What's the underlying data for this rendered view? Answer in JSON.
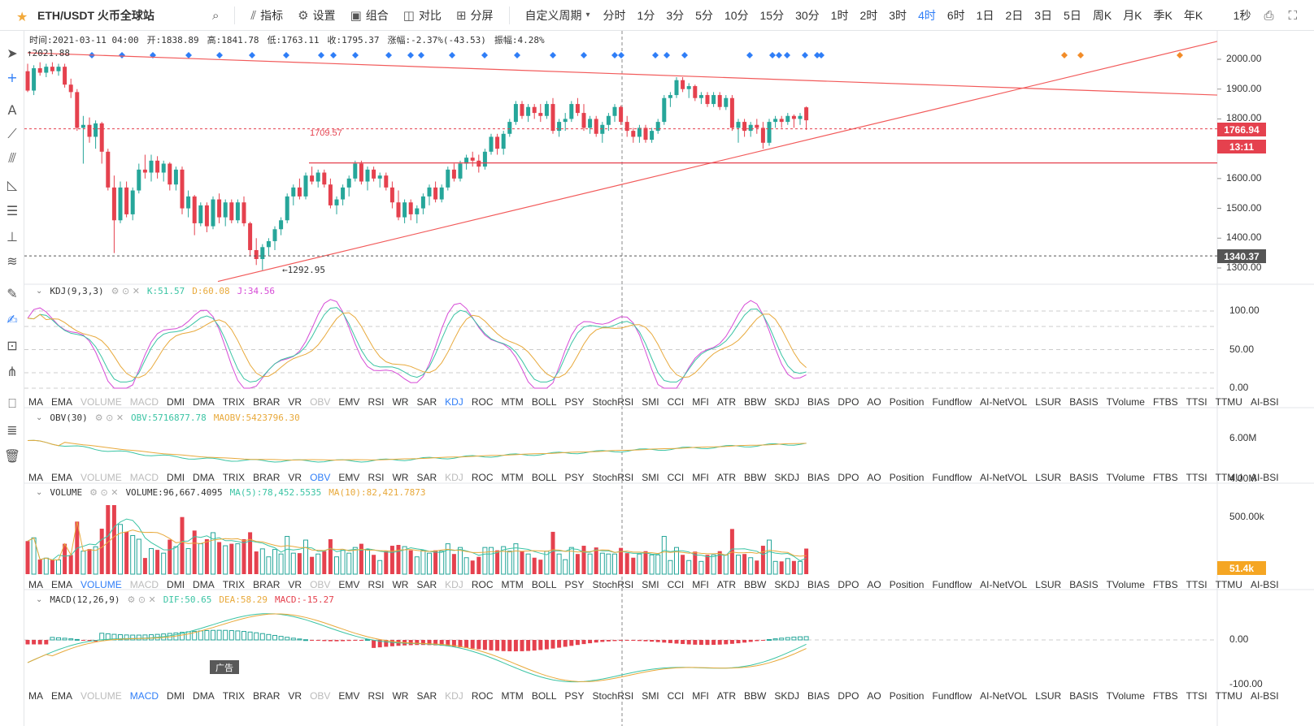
{
  "topbar": {
    "symbol": "ETH/USDT 火币全球站",
    "buttons": [
      {
        "id": "search",
        "icon": "search-icon",
        "label": ""
      },
      {
        "id": "indicators",
        "icon": "chart-line-icon",
        "label": "指标"
      },
      {
        "id": "settings",
        "icon": "gear-icon",
        "label": "设置"
      },
      {
        "id": "combine",
        "icon": "layers-icon",
        "label": "组合"
      },
      {
        "id": "compare",
        "icon": "compare-icon",
        "label": "对比"
      },
      {
        "id": "split",
        "icon": "split-screen-icon",
        "label": "分屏"
      }
    ],
    "custom_period": "自定义周期",
    "periods": [
      "分时",
      "1分",
      "3分",
      "5分",
      "10分",
      "15分",
      "30分",
      "1时",
      "2时",
      "3时",
      "4时",
      "6时",
      "1日",
      "2日",
      "3日",
      "5日",
      "周K",
      "月K",
      "季K",
      "年K"
    ],
    "active_period": "4时",
    "refresh": "1秒",
    "colors": {
      "active": "#2f7ef7",
      "star": "#f2a93b"
    }
  },
  "info": {
    "time": "时间:2021-03-11 04:00",
    "open": "开:1838.89",
    "high": "高:1841.78",
    "low": "低:1763.11",
    "close": "收:1795.37",
    "change": "涨幅:-2.37%(-43.53)",
    "amplitude": "振幅:4.28%"
  },
  "price_axis": {
    "ticks": [
      "2000.00",
      "1900.00",
      "1800.00",
      "1700.00",
      "1600.00",
      "1500.00",
      "1400.00",
      "1300.00"
    ],
    "tags": {
      "current": "1766.94",
      "countdown": "13:11",
      "lower": "1340.37",
      "volume": "51.4k"
    }
  },
  "annotations": {
    "high": "2021.88",
    "low": "1292.95",
    "level": "1709.57"
  },
  "panes": {
    "kdj": {
      "name": "KDJ(9,3,3)",
      "k": "K:51.57",
      "d": "D:60.08",
      "j": "J:34.56",
      "ticks": [
        "100.00",
        "50.00",
        "0.00"
      ]
    },
    "obv": {
      "name": "OBV(30)",
      "obv": "OBV:5716877.78",
      "maobv": "MAOBV:5423796.30",
      "ticks": [
        "6.00M",
        "4.00M"
      ]
    },
    "volume": {
      "name": "VOLUME",
      "vol": "VOLUME:96,667.4095",
      "ma5": "MA(5):78,452.5535",
      "ma10": "MA(10):82,421.7873",
      "ticks": [
        "500.00k"
      ]
    },
    "macd": {
      "name": "MACD(12,26,9)",
      "dif": "DIF:50.65",
      "dea": "DEA:58.29",
      "macd": "MACD:-15.27",
      "ticks": [
        "0.00",
        "-100.00"
      ]
    }
  },
  "indicator_tabs": [
    "MA",
    "EMA",
    "VOLUME",
    "MACD",
    "DMI",
    "DMA",
    "TRIX",
    "BRAR",
    "VR",
    "OBV",
    "EMV",
    "RSI",
    "WR",
    "SAR",
    "KDJ",
    "ROC",
    "MTM",
    "BOLL",
    "PSY",
    "StochRSI",
    "SMI",
    "CCI",
    "MFI",
    "ATR",
    "BBW",
    "SKDJ",
    "BIAS",
    "DPO",
    "AO",
    "Position",
    "Fundflow",
    "AI-NetVOL",
    "LSUR",
    "BASIS",
    "TVolume",
    "FTBS",
    "TTSI",
    "TTMU",
    "AI-BSI"
  ],
  "ad_label": "广告",
  "chart_data": {
    "type": "candlestick",
    "title": "ETH/USDT 火币全球站",
    "interval": "4时",
    "ylim": [
      1270,
      2060
    ],
    "ohlc_note": "estimated from the chart",
    "candles": [
      [
        1960,
        1985,
        1890,
        1895
      ],
      [
        1895,
        1980,
        1880,
        1970
      ],
      [
        1970,
        1990,
        1945,
        1955
      ],
      [
        1955,
        1985,
        1940,
        1975
      ],
      [
        1975,
        1990,
        1950,
        1960
      ],
      [
        1960,
        1985,
        1945,
        1975
      ],
      [
        1975,
        1985,
        1905,
        1915
      ],
      [
        1915,
        1935,
        1870,
        1890
      ],
      [
        1890,
        1900,
        1760,
        1770
      ],
      [
        1770,
        1810,
        1650,
        1780
      ],
      [
        1780,
        1805,
        1720,
        1740
      ],
      [
        1740,
        1795,
        1700,
        1785
      ],
      [
        1785,
        1790,
        1650,
        1690
      ],
      [
        1690,
        1700,
        1560,
        1570
      ],
      [
        1570,
        1610,
        1350,
        1460
      ],
      [
        1460,
        1590,
        1450,
        1570
      ],
      [
        1570,
        1590,
        1470,
        1480
      ],
      [
        1480,
        1570,
        1460,
        1560
      ],
      [
        1560,
        1650,
        1550,
        1630
      ],
      [
        1630,
        1680,
        1600,
        1620
      ],
      [
        1620,
        1680,
        1590,
        1660
      ],
      [
        1660,
        1675,
        1600,
        1620
      ],
      [
        1620,
        1660,
        1590,
        1650
      ],
      [
        1650,
        1655,
        1560,
        1580
      ],
      [
        1580,
        1640,
        1560,
        1630
      ],
      [
        1630,
        1640,
        1480,
        1500
      ],
      [
        1500,
        1560,
        1470,
        1540
      ],
      [
        1540,
        1545,
        1410,
        1450
      ],
      [
        1450,
        1520,
        1440,
        1510
      ],
      [
        1510,
        1520,
        1420,
        1440
      ],
      [
        1440,
        1540,
        1430,
        1530
      ],
      [
        1530,
        1550,
        1450,
        1470
      ],
      [
        1470,
        1530,
        1440,
        1520
      ],
      [
        1520,
        1530,
        1450,
        1460
      ],
      [
        1460,
        1530,
        1450,
        1520
      ],
      [
        1520,
        1540,
        1440,
        1450
      ],
      [
        1450,
        1455,
        1340,
        1360
      ],
      [
        1360,
        1400,
        1310,
        1330
      ],
      [
        1330,
        1380,
        1292.95,
        1370
      ],
      [
        1370,
        1400,
        1340,
        1390
      ],
      [
        1390,
        1440,
        1360,
        1430
      ],
      [
        1430,
        1470,
        1410,
        1460
      ],
      [
        1460,
        1550,
        1450,
        1540
      ],
      [
        1540,
        1580,
        1510,
        1570
      ],
      [
        1570,
        1600,
        1530,
        1540
      ],
      [
        1540,
        1620,
        1530,
        1610
      ],
      [
        1610,
        1640,
        1580,
        1590
      ],
      [
        1590,
        1630,
        1570,
        1620
      ],
      [
        1620,
        1630,
        1570,
        1580
      ],
      [
        1580,
        1600,
        1500,
        1510
      ],
      [
        1510,
        1540,
        1480,
        1530
      ],
      [
        1530,
        1580,
        1510,
        1570
      ],
      [
        1570,
        1610,
        1540,
        1600
      ],
      [
        1600,
        1660,
        1590,
        1650
      ],
      [
        1650,
        1660,
        1580,
        1590
      ],
      [
        1590,
        1640,
        1560,
        1630
      ],
      [
        1630,
        1640,
        1590,
        1600
      ],
      [
        1600,
        1620,
        1570,
        1610
      ],
      [
        1610,
        1620,
        1560,
        1570
      ],
      [
        1570,
        1590,
        1500,
        1520
      ],
      [
        1520,
        1560,
        1460,
        1470
      ],
      [
        1470,
        1530,
        1450,
        1520
      ],
      [
        1520,
        1530,
        1460,
        1480
      ],
      [
        1480,
        1510,
        1450,
        1500
      ],
      [
        1500,
        1550,
        1480,
        1540
      ],
      [
        1540,
        1580,
        1510,
        1570
      ],
      [
        1570,
        1590,
        1520,
        1530
      ],
      [
        1530,
        1580,
        1520,
        1570
      ],
      [
        1570,
        1640,
        1560,
        1630
      ],
      [
        1630,
        1650,
        1590,
        1600
      ],
      [
        1600,
        1660,
        1590,
        1650
      ],
      [
        1650,
        1680,
        1630,
        1670
      ],
      [
        1670,
        1690,
        1640,
        1660
      ],
      [
        1660,
        1680,
        1620,
        1640
      ],
      [
        1640,
        1700,
        1630,
        1690
      ],
      [
        1690,
        1750,
        1680,
        1740
      ],
      [
        1740,
        1750,
        1680,
        1700
      ],
      [
        1700,
        1760,
        1680,
        1750
      ],
      [
        1750,
        1800,
        1740,
        1790
      ],
      [
        1790,
        1860,
        1780,
        1850
      ],
      [
        1850,
        1860,
        1800,
        1810
      ],
      [
        1810,
        1850,
        1790,
        1840
      ],
      [
        1840,
        1850,
        1800,
        1820
      ],
      [
        1820,
        1850,
        1790,
        1810
      ],
      [
        1810,
        1860,
        1800,
        1850
      ],
      [
        1850,
        1870,
        1750,
        1760
      ],
      [
        1760,
        1800,
        1740,
        1790
      ],
      [
        1790,
        1820,
        1760,
        1800
      ],
      [
        1800,
        1860,
        1790,
        1850
      ],
      [
        1850,
        1870,
        1810,
        1820
      ],
      [
        1820,
        1850,
        1760,
        1770
      ],
      [
        1770,
        1810,
        1750,
        1800
      ],
      [
        1800,
        1810,
        1740,
        1750
      ],
      [
        1750,
        1790,
        1720,
        1780
      ],
      [
        1780,
        1820,
        1760,
        1810
      ],
      [
        1810,
        1850,
        1790,
        1840
      ],
      [
        1840,
        1845,
        1780,
        1790
      ],
      [
        1790,
        1810,
        1740,
        1760
      ],
      [
        1760,
        1770,
        1720,
        1740
      ],
      [
        1740,
        1780,
        1720,
        1770
      ],
      [
        1770,
        1780,
        1720,
        1730
      ],
      [
        1730,
        1770,
        1720,
        1760
      ],
      [
        1760,
        1800,
        1750,
        1790
      ],
      [
        1790,
        1880,
        1780,
        1870
      ],
      [
        1870,
        1890,
        1840,
        1880
      ],
      [
        1880,
        1940,
        1870,
        1930
      ],
      [
        1930,
        1940,
        1890,
        1900
      ],
      [
        1900,
        1920,
        1870,
        1910
      ],
      [
        1910,
        1915,
        1860,
        1870
      ],
      [
        1870,
        1890,
        1850,
        1880
      ],
      [
        1880,
        1890,
        1840,
        1850
      ],
      [
        1850,
        1890,
        1840,
        1880
      ],
      [
        1880,
        1890,
        1830,
        1840
      ],
      [
        1840,
        1880,
        1830,
        1870
      ],
      [
        1870,
        1880,
        1760,
        1770
      ],
      [
        1770,
        1800,
        1720,
        1790
      ],
      [
        1790,
        1800,
        1740,
        1760
      ],
      [
        1760,
        1790,
        1740,
        1780
      ],
      [
        1780,
        1800,
        1750,
        1770
      ],
      [
        1770,
        1790,
        1700,
        1720
      ],
      [
        1720,
        1800,
        1710,
        1790
      ],
      [
        1790,
        1810,
        1770,
        1800
      ],
      [
        1800,
        1810,
        1770,
        1790
      ],
      [
        1790,
        1820,
        1780,
        1810
      ],
      [
        1810,
        1815,
        1770,
        1800
      ],
      [
        1800,
        1820,
        1780,
        1810
      ],
      [
        1838.89,
        1841.78,
        1763.11,
        1795.37
      ]
    ],
    "trendlines": [
      {
        "name": "resistance",
        "from": [
          0,
          2021.88
        ],
        "to": [
          166,
          1880
        ]
      },
      {
        "name": "support",
        "from": [
          38,
          1255
        ],
        "to": [
          176,
          2060
        ]
      },
      {
        "name": "horizontal",
        "value": 1709.57
      }
    ],
    "kdj": {
      "k": 51.57,
      "d": 60.08,
      "j": 34.56
    },
    "obv": {
      "obv": 5716877.78,
      "maobv": 5423796.3
    },
    "volume": {
      "volume": 96667.4095,
      "ma5": 78452.5535,
      "ma10": 82421.7873
    },
    "macd": {
      "dif": 50.65,
      "dea": 58.29,
      "macd": -15.27
    },
    "colors": {
      "up": "#26a69a",
      "down": "#e5414e",
      "ma5": "#3bc4a4",
      "ma10": "#e8a93b",
      "j": "#d64bd6"
    }
  }
}
